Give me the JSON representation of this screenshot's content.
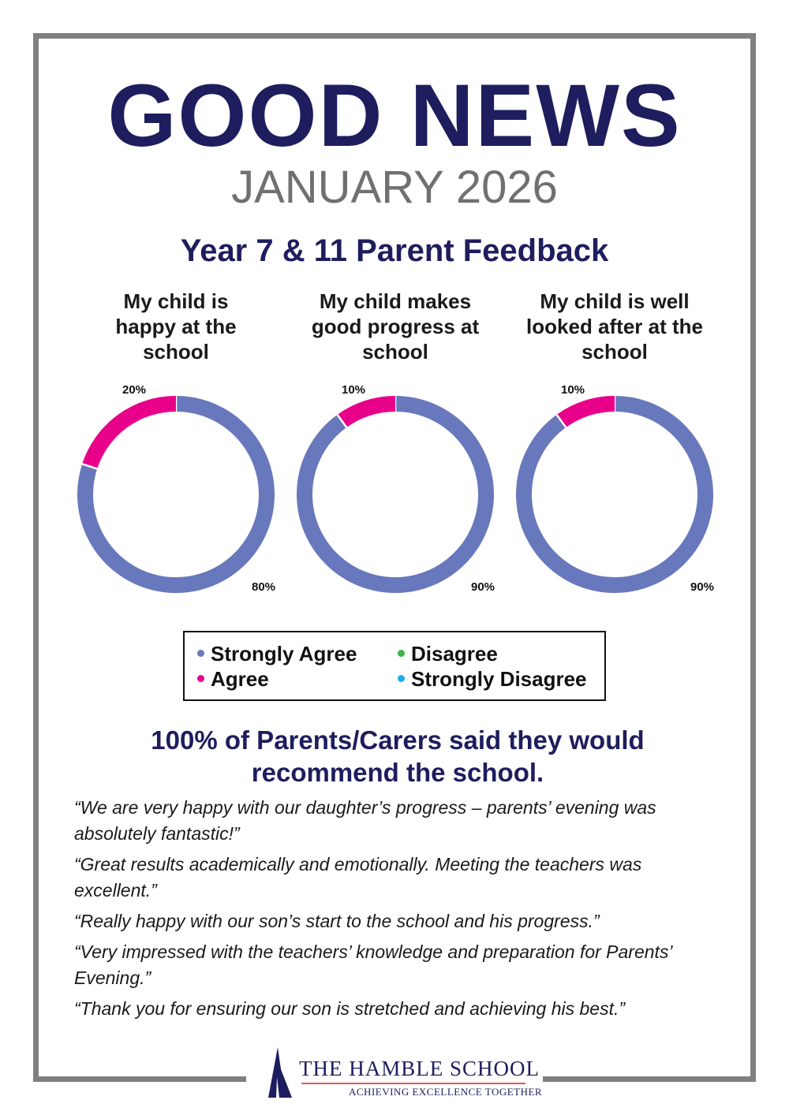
{
  "header": {
    "title": "GOOD NEWS",
    "date": "JANUARY 2026",
    "subtitle": "Year 7 & 11 Parent Feedback"
  },
  "colors": {
    "strongly_agree": "#6878bd",
    "agree": "#e8008a",
    "disagree": "#3ab54a",
    "strongly_disagree": "#1aaee8",
    "navy": "#1e1d5e",
    "frame": "#808080"
  },
  "chart_data": [
    {
      "type": "pie",
      "donut": true,
      "title": "My child is happy at the school",
      "categories": [
        "Strongly Agree",
        "Agree"
      ],
      "values": [
        80,
        20
      ],
      "labels": [
        "80%",
        "20%"
      ]
    },
    {
      "type": "pie",
      "donut": true,
      "title": "My child makes good progress at school",
      "categories": [
        "Strongly Agree",
        "Agree"
      ],
      "values": [
        90,
        10
      ],
      "labels": [
        "90%",
        "10%"
      ]
    },
    {
      "type": "pie",
      "donut": true,
      "title": "My child is well looked after at the school",
      "categories": [
        "Strongly Agree",
        "Agree"
      ],
      "values": [
        90,
        10
      ],
      "labels": [
        "90%",
        "10%"
      ]
    }
  ],
  "legend": [
    {
      "label": "Strongly Agree"
    },
    {
      "label": "Agree"
    },
    {
      "label": "Disagree"
    },
    {
      "label": "Strongly Disagree"
    }
  ],
  "recommend": "100% of Parents/Carers said they would recommend the school.",
  "quotes": [
    "“We are very happy with our daughter’s progress – parents’ evening was absolutely fantastic!”",
    "“Great results academically and emotionally. Meeting the teachers was excellent.”",
    "“Really happy with our son’s start to the school and his progress.”",
    "“Very impressed with the teachers’ knowledge and preparation for Parents’ Evening.”",
    "“Thank you for ensuring our son is stretched and achieving his best.”"
  ],
  "logo": {
    "name": "THE HAMBLE SCHOOL",
    "tagline": "ACHIEVING EXCELLENCE TOGETHER"
  }
}
